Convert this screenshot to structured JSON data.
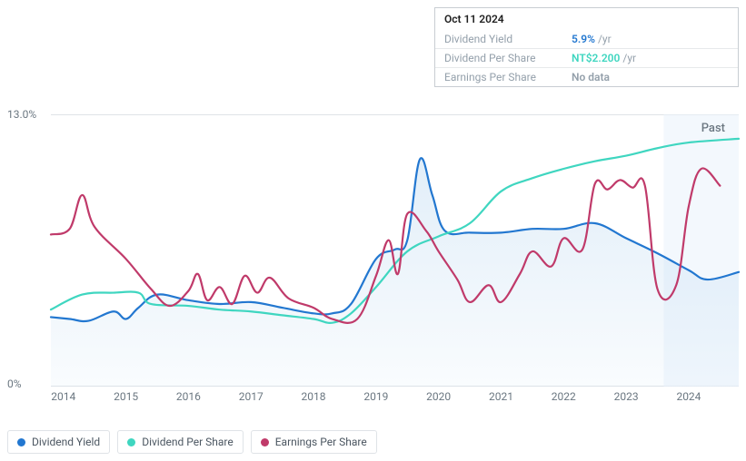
{
  "tooltip": {
    "date": "Oct 11 2024",
    "rows": [
      {
        "label": "Dividend Yield",
        "value": "5.9%",
        "unit": "/yr",
        "color": "#2277d0"
      },
      {
        "label": "Dividend Per Share",
        "value": "NT$2.200",
        "unit": "/yr",
        "color": "#3fd6c0"
      },
      {
        "label": "Earnings Per Share",
        "value": "No data",
        "unit": "",
        "color": "#94a0ab"
      }
    ]
  },
  "chart": {
    "type": "line",
    "background_color": "#ffffff",
    "grid_color": "#dfe3e7",
    "label_color": "#6b7781",
    "label_fontsize": 12,
    "x_years": [
      2014,
      2015,
      2016,
      2017,
      2018,
      2019,
      2020,
      2021,
      2022,
      2023,
      2024
    ],
    "x_min": 2013.8,
    "x_max": 2024.8,
    "ylim": [
      0,
      14.5
    ],
    "y_ticks": [
      {
        "v": 0,
        "label": "0%"
      },
      {
        "v": 13.0,
        "label": "13.0%"
      }
    ],
    "past_marker": {
      "label": "Past",
      "x": 2024.2
    },
    "future_shade": {
      "x_from": 2023.6,
      "color": "#e9f2fb",
      "opacity": 0.55
    },
    "series": [
      {
        "name": "Dividend Yield",
        "color": "#2277d0",
        "line_width": 2.2,
        "fill": "#b9d7f0",
        "fill_opacity": 0.42,
        "points": [
          [
            2013.8,
            3.7
          ],
          [
            2014.1,
            3.6
          ],
          [
            2014.4,
            3.5
          ],
          [
            2014.8,
            4.0
          ],
          [
            2015.0,
            3.6
          ],
          [
            2015.2,
            4.2
          ],
          [
            2015.5,
            4.9
          ],
          [
            2016.0,
            4.6
          ],
          [
            2016.5,
            4.4
          ],
          [
            2017.0,
            4.5
          ],
          [
            2017.5,
            4.2
          ],
          [
            2018.0,
            3.9
          ],
          [
            2018.3,
            3.9
          ],
          [
            2018.6,
            4.4
          ],
          [
            2019.0,
            6.8
          ],
          [
            2019.3,
            7.3
          ],
          [
            2019.5,
            7.8
          ],
          [
            2019.7,
            12.1
          ],
          [
            2019.9,
            10.2
          ],
          [
            2020.1,
            8.3
          ],
          [
            2020.5,
            8.2
          ],
          [
            2021.0,
            8.2
          ],
          [
            2021.5,
            8.4
          ],
          [
            2022.0,
            8.4
          ],
          [
            2022.5,
            8.7
          ],
          [
            2023.0,
            7.9
          ],
          [
            2023.5,
            7.1
          ],
          [
            2024.0,
            6.2
          ],
          [
            2024.3,
            5.7
          ],
          [
            2024.8,
            6.1
          ]
        ]
      },
      {
        "name": "Dividend Per Share",
        "color": "#3fd6c0",
        "line_width": 2.2,
        "points": [
          [
            2013.8,
            4.1
          ],
          [
            2014.3,
            4.9
          ],
          [
            2014.8,
            5.0
          ],
          [
            2015.2,
            5.0
          ],
          [
            2015.4,
            4.4
          ],
          [
            2016.0,
            4.3
          ],
          [
            2016.5,
            4.1
          ],
          [
            2017.0,
            4.0
          ],
          [
            2017.5,
            3.8
          ],
          [
            2018.0,
            3.6
          ],
          [
            2018.3,
            3.4
          ],
          [
            2018.6,
            3.9
          ],
          [
            2019.0,
            5.3
          ],
          [
            2019.5,
            7.2
          ],
          [
            2020.0,
            8.0
          ],
          [
            2020.5,
            8.7
          ],
          [
            2021.0,
            10.4
          ],
          [
            2021.5,
            11.1
          ],
          [
            2022.0,
            11.6
          ],
          [
            2022.5,
            12.0
          ],
          [
            2023.0,
            12.3
          ],
          [
            2023.5,
            12.7
          ],
          [
            2024.0,
            13.0
          ],
          [
            2024.8,
            13.2
          ]
        ]
      },
      {
        "name": "Earnings Per Share",
        "color": "#c03a6a",
        "line_width": 2.2,
        "points": [
          [
            2013.8,
            8.1
          ],
          [
            2014.1,
            8.4
          ],
          [
            2014.3,
            10.2
          ],
          [
            2014.5,
            8.5
          ],
          [
            2015.0,
            6.8
          ],
          [
            2015.4,
            5.2
          ],
          [
            2015.7,
            4.3
          ],
          [
            2016.0,
            5.1
          ],
          [
            2016.15,
            6.0
          ],
          [
            2016.3,
            4.6
          ],
          [
            2016.5,
            5.3
          ],
          [
            2016.7,
            4.4
          ],
          [
            2016.9,
            5.9
          ],
          [
            2017.1,
            5.0
          ],
          [
            2017.3,
            5.8
          ],
          [
            2017.6,
            4.7
          ],
          [
            2018.0,
            4.2
          ],
          [
            2018.3,
            3.6
          ],
          [
            2018.7,
            3.6
          ],
          [
            2019.0,
            5.9
          ],
          [
            2019.2,
            7.8
          ],
          [
            2019.35,
            6.0
          ],
          [
            2019.5,
            9.2
          ],
          [
            2019.8,
            8.3
          ],
          [
            2020.0,
            7.2
          ],
          [
            2020.3,
            5.7
          ],
          [
            2020.5,
            4.5
          ],
          [
            2020.8,
            5.4
          ],
          [
            2021.0,
            4.5
          ],
          [
            2021.3,
            6.0
          ],
          [
            2021.5,
            7.2
          ],
          [
            2021.8,
            6.4
          ],
          [
            2022.0,
            7.9
          ],
          [
            2022.3,
            7.3
          ],
          [
            2022.5,
            10.8
          ],
          [
            2022.7,
            10.5
          ],
          [
            2022.9,
            11.0
          ],
          [
            2023.1,
            10.6
          ],
          [
            2023.3,
            10.7
          ],
          [
            2023.5,
            5.2
          ],
          [
            2023.8,
            5.4
          ],
          [
            2024.0,
            9.6
          ],
          [
            2024.2,
            11.6
          ],
          [
            2024.5,
            10.7
          ]
        ]
      }
    ]
  },
  "legend": [
    {
      "label": "Dividend Yield",
      "color": "#2277d0"
    },
    {
      "label": "Dividend Per Share",
      "color": "#3fd6c0"
    },
    {
      "label": "Earnings Per Share",
      "color": "#c03a6a"
    }
  ]
}
